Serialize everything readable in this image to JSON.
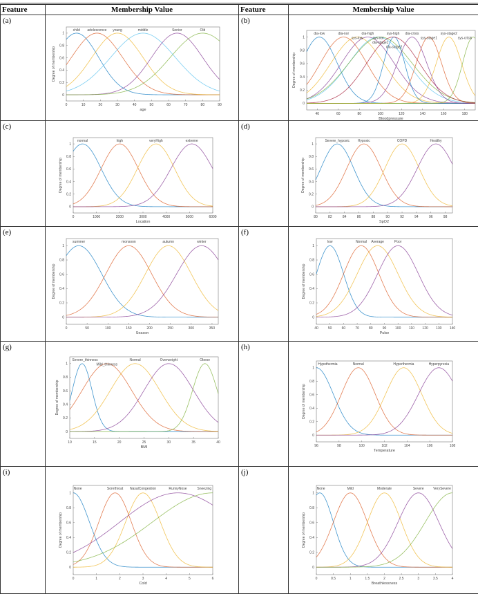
{
  "header": {
    "feature": "Feature",
    "membership": "Membership Value"
  },
  "colors": [
    "#0072BD",
    "#D95319",
    "#EDB120",
    "#7E2F8E",
    "#77AC30",
    "#4DBEEE",
    "#A2142F"
  ],
  "chart_data": [
    {
      "id": "(a)",
      "type": "line",
      "function": "gaussian",
      "xlabel": "age",
      "ylabel": "Degree of membership",
      "xlim": [
        0,
        90
      ],
      "ylim": [
        -0.1,
        1.1
      ],
      "xticks": [
        0,
        10,
        20,
        30,
        40,
        50,
        60,
        70,
        80,
        90
      ],
      "yticks": [
        0,
        0.2,
        0.4,
        0.6,
        0.8,
        1
      ],
      "series": [
        {
          "name": "child",
          "center": 6,
          "sigma": 13,
          "color": "#0072BD"
        },
        {
          "name": "adolescence",
          "center": 18,
          "sigma": 15,
          "color": "#D95319"
        },
        {
          "name": "young",
          "center": 30,
          "sigma": 15,
          "color": "#EDB120"
        },
        {
          "name": "middle",
          "center": 45,
          "sigma": 19,
          "color": "#4DBEEE"
        },
        {
          "name": "Senior",
          "center": 65,
          "sigma": 15,
          "color": "#7E2F8E"
        },
        {
          "name": "Old",
          "center": 80,
          "sigma": 19,
          "color": "#77AC30"
        }
      ]
    },
    {
      "id": "(b)",
      "type": "line",
      "function": "gaussian",
      "xlabel": "Bloodpressure",
      "ylabel": "Degree of membership",
      "xlim": [
        30,
        190
      ],
      "ylim": [
        -0.1,
        1.1
      ],
      "xticks": [
        40,
        60,
        80,
        100,
        120,
        140,
        160,
        180
      ],
      "yticks": [
        0,
        0.2,
        0.4,
        0.6,
        0.8,
        1
      ],
      "series": [
        {
          "name": "dia-low",
          "center": 42,
          "sigma": 17,
          "color": "#0072BD"
        },
        {
          "name": "dia-nor",
          "center": 65,
          "sigma": 22,
          "color": "#D95319"
        },
        {
          "name": "sys-low",
          "center": 78,
          "sigma": 25,
          "color": "#EDB120"
        },
        {
          "name": "dia-high",
          "center": 88,
          "sigma": 25,
          "color": "#7E2F8E"
        },
        {
          "name": "sys-nor",
          "center": 98,
          "sigma": 28,
          "color": "#4DBEEE"
        },
        {
          "name": "dia-stage1",
          "center": 100,
          "sigma": 30,
          "color": "#77AC30"
        },
        {
          "name": "dia-stage2",
          "center": 113,
          "sigma": 10,
          "color": "#0072BD"
        },
        {
          "name": "sys-high",
          "center": 112,
          "sigma": 25,
          "color": "#A2142F"
        },
        {
          "name": "dia-crisis",
          "center": 130,
          "sigma": 14,
          "color": "#7E2F8E"
        },
        {
          "name": "sys-stage1",
          "center": 146,
          "sigma": 12,
          "color": "#D95319"
        },
        {
          "name": "sys-stage2",
          "center": 165,
          "sigma": 12,
          "color": "#EDB120"
        },
        {
          "name": "sys-crisis",
          "center": 188,
          "sigma": 10,
          "color": "#77AC30"
        }
      ]
    },
    {
      "id": "(c)",
      "type": "line",
      "function": "gaussian",
      "xlabel": "Location",
      "ylabel": "Degree of membership",
      "xlim": [
        0,
        6000
      ],
      "ylim": [
        -0.1,
        1.1
      ],
      "xticks": [
        0,
        1000,
        2000,
        3000,
        4000,
        5000,
        6000
      ],
      "yticks": [
        0,
        0.2,
        0.4,
        0.6,
        0.8,
        1
      ],
      "series": [
        {
          "name": "normal",
          "center": 400,
          "sigma": 800,
          "color": "#0072BD"
        },
        {
          "name": "high",
          "center": 2000,
          "sigma": 800,
          "color": "#D95319"
        },
        {
          "name": "veryHigh",
          "center": 3560,
          "sigma": 800,
          "color": "#EDB120"
        },
        {
          "name": "extreme",
          "center": 5100,
          "sigma": 900,
          "color": "#7E2F8E"
        }
      ]
    },
    {
      "id": "(d)",
      "type": "line",
      "function": "gaussian",
      "xlabel": "SpO2",
      "ylabel": "Degree of membership",
      "xlim": [
        80,
        99
      ],
      "ylim": [
        -0.1,
        1.1
      ],
      "xticks": [
        80,
        82,
        84,
        86,
        88,
        90,
        92,
        94,
        96,
        98
      ],
      "yticks": [
        0,
        0.2,
        0.4,
        0.6,
        0.8,
        1
      ],
      "series": [
        {
          "name": "Severe_hypoxic",
          "center": 83,
          "sigma": 2.3,
          "color": "#0072BD"
        },
        {
          "name": "Hypoxic",
          "center": 86.7,
          "sigma": 2.4,
          "color": "#D95319"
        },
        {
          "name": "COPD",
          "center": 92,
          "sigma": 2.4,
          "color": "#EDB120"
        },
        {
          "name": "Healthy",
          "center": 96.7,
          "sigma": 2.6,
          "color": "#7E2F8E"
        }
      ]
    },
    {
      "id": "(e)",
      "type": "line",
      "function": "gaussian",
      "xlabel": "Season",
      "ylabel": "Degree of membership",
      "xlim": [
        0,
        365
      ],
      "ylim": [
        -0.1,
        1.1
      ],
      "xticks": [
        0,
        50,
        100,
        150,
        200,
        250,
        300,
        350
      ],
      "yticks": [
        0,
        0.2,
        0.4,
        0.6,
        0.8,
        1
      ],
      "series": [
        {
          "name": "summer",
          "center": 30,
          "sigma": 55,
          "color": "#0072BD"
        },
        {
          "name": "monsoon",
          "center": 150,
          "sigma": 55,
          "color": "#D95319"
        },
        {
          "name": "autumn",
          "center": 245,
          "sigma": 55,
          "color": "#EDB120"
        },
        {
          "name": "winter",
          "center": 325,
          "sigma": 60,
          "color": "#7E2F8E"
        }
      ]
    },
    {
      "id": "(f)",
      "type": "line",
      "function": "gaussian",
      "xlabel": "Pulse",
      "ylabel": "Degree of membership",
      "xlim": [
        40,
        140
      ],
      "ylim": [
        -0.1,
        1.1
      ],
      "xticks": [
        40,
        50,
        60,
        70,
        80,
        90,
        100,
        110,
        120,
        130,
        140
      ],
      "yticks": [
        0,
        0.2,
        0.4,
        0.6,
        0.8,
        1
      ],
      "series": [
        {
          "name": "low",
          "center": 50,
          "sigma": 10,
          "color": "#0072BD"
        },
        {
          "name": "Normal",
          "center": 73,
          "sigma": 13,
          "color": "#D95319"
        },
        {
          "name": "Average",
          "center": 85,
          "sigma": 15,
          "color": "#EDB120"
        },
        {
          "name": "Poor",
          "center": 100,
          "sigma": 15,
          "color": "#7E2F8E"
        }
      ]
    },
    {
      "id": "(g)",
      "type": "line",
      "function": "gaussian",
      "xlabel": "BMI",
      "ylabel": "Degree of membership",
      "xlim": [
        10,
        40
      ],
      "ylim": [
        -0.1,
        1.1
      ],
      "xticks": [
        10,
        15,
        20,
        25,
        30,
        35,
        40
      ],
      "yticks": [
        0,
        0.2,
        0.4,
        0.6,
        0.8,
        1
      ],
      "series": [
        {
          "name": "Severe_thinness",
          "center": 12.5,
          "sigma": 2,
          "color": "#0072BD"
        },
        {
          "name": "Mild_thinness",
          "center": 17.5,
          "sigma": 5,
          "color": "#D95319"
        },
        {
          "name": "Normal",
          "center": 23.2,
          "sigma": 5,
          "color": "#EDB120"
        },
        {
          "name": "Overweight",
          "center": 30,
          "sigma": 5,
          "color": "#7E2F8E"
        },
        {
          "name": "Obese",
          "center": 37.3,
          "sigma": 2.5,
          "color": "#77AC30"
        }
      ]
    },
    {
      "id": "(h)",
      "type": "line",
      "function": "gaussian",
      "xlabel": "Temperature",
      "ylabel": "Degree of membership",
      "xlim": [
        96,
        108
      ],
      "ylim": [
        -0.1,
        1.1
      ],
      "xticks": [
        96,
        98,
        100,
        102,
        104,
        106,
        108
      ],
      "yticks": [
        0,
        0.2,
        0.4,
        0.6,
        0.8,
        1
      ],
      "series": [
        {
          "name": "Hypothermia",
          "center": 96,
          "sigma": 1.5,
          "color": "#0072BD"
        },
        {
          "name": "Normal",
          "center": 99.7,
          "sigma": 1.5,
          "color": "#D95319"
        },
        {
          "name": "Hyperthermia",
          "center": 103.7,
          "sigma": 1.6,
          "color": "#EDB120"
        },
        {
          "name": "Hyperpyrexia",
          "center": 106.8,
          "sigma": 1.8,
          "color": "#7E2F8E"
        }
      ]
    },
    {
      "id": "(i)",
      "type": "line",
      "function": "gaussian",
      "xlabel": "Cold",
      "ylabel": "Degree of membership",
      "xlim": [
        0,
        6
      ],
      "ylim": [
        -0.1,
        1.1
      ],
      "xticks": [
        0,
        1,
        2,
        3,
        4,
        5,
        6
      ],
      "yticks": [
        0,
        0.2,
        0.4,
        0.6,
        0.8,
        1
      ],
      "series": [
        {
          "name": "None",
          "center": 0,
          "sigma": 0.7,
          "color": "#0072BD"
        },
        {
          "name": "Sorethroat",
          "center": 1.8,
          "sigma": 0.7,
          "color": "#D95319"
        },
        {
          "name": "NasalCongestion",
          "center": 3,
          "sigma": 0.75,
          "color": "#EDB120"
        },
        {
          "name": "RunnyNose",
          "center": 4.5,
          "sigma": 2.5,
          "color": "#7E2F8E"
        },
        {
          "name": "Sneezing",
          "center": 6,
          "sigma": 2.6,
          "color": "#77AC30"
        }
      ]
    },
    {
      "id": "(j)",
      "type": "line",
      "function": "gaussian",
      "xlabel": "Breathlessness",
      "ylabel": "Degree of membership",
      "xlim": [
        0,
        4
      ],
      "ylim": [
        -0.1,
        1.1
      ],
      "xticks": [
        0,
        0.5,
        1,
        1.5,
        2,
        2.5,
        3,
        3.5,
        4
      ],
      "yticks": [
        0,
        0.2,
        0.4,
        0.6,
        0.8,
        1
      ],
      "series": [
        {
          "name": "None",
          "center": 0.1,
          "sigma": 0.4,
          "color": "#0072BD"
        },
        {
          "name": "Mild",
          "center": 1,
          "sigma": 0.5,
          "color": "#D95319"
        },
        {
          "name": "Moderate",
          "center": 2,
          "sigma": 0.5,
          "color": "#EDB120"
        },
        {
          "name": "Severe",
          "center": 3,
          "sigma": 0.6,
          "color": "#7E2F8E"
        },
        {
          "name": "VerySevere",
          "center": 4,
          "sigma": 0.8,
          "color": "#77AC30"
        }
      ]
    }
  ]
}
